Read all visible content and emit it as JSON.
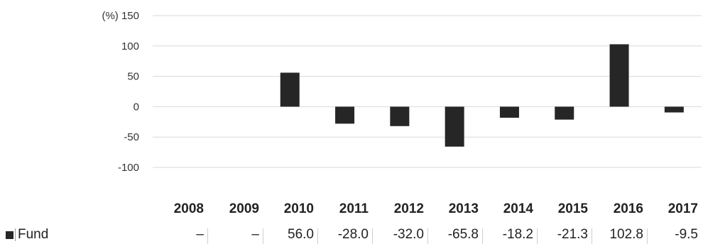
{
  "chart_data": {
    "type": "bar",
    "yunit": "(%)",
    "yticks": [
      150,
      100,
      50,
      0,
      -50,
      -100
    ],
    "ylim": [
      -100,
      150
    ],
    "grid": true,
    "categories": [
      "2008",
      "2009",
      "2010",
      "2011",
      "2012",
      "2013",
      "2014",
      "2015",
      "2016",
      "2017"
    ],
    "series": [
      {
        "name": "Fund",
        "values": [
          null,
          null,
          56.0,
          -28.0,
          -32.0,
          -65.8,
          -18.2,
          -21.3,
          102.8,
          -9.5
        ],
        "labels": [
          "–",
          "–",
          "56.0",
          "-28.0",
          "-32.0",
          "-65.8",
          "-18.2",
          "-21.3",
          "102.8",
          "-9.5"
        ],
        "color": "#262626"
      }
    ]
  }
}
